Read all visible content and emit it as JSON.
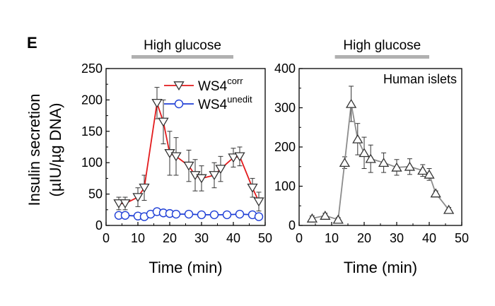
{
  "panel_label": "E",
  "ylabel_line1": "Insulin secretion",
  "ylabel_line2": "(µIU/µg DNA)",
  "colors": {
    "red": "#e31a1c",
    "blue": "#1f3fd6",
    "gray": "#8c8c8c",
    "bar": "#b0b0b0"
  },
  "chart_data": [
    {
      "type": "line",
      "xlabel": "Time (min)",
      "ylabel": "Insulin secretion (µIU/µg DNA)",
      "xlim": [
        0,
        50
      ],
      "ylim": [
        0,
        250
      ],
      "xticks": [
        0,
        10,
        20,
        30,
        40,
        50
      ],
      "yticks": [
        0,
        50,
        100,
        150,
        200,
        250
      ],
      "annotation": {
        "text": "High glucose",
        "range": [
          8,
          40
        ]
      },
      "legend": {
        "placement": "top-left"
      },
      "series": [
        {
          "name_base": "WS4",
          "name_sup": "corr",
          "color": "#e31a1c",
          "marker": "triangle-down",
          "x": [
            4,
            6,
            10,
            12,
            16,
            18,
            20,
            22,
            26,
            28,
            30,
            34,
            36,
            40,
            42,
            46,
            48
          ],
          "y": [
            35,
            35,
            45,
            60,
            195,
            165,
            115,
            110,
            95,
            80,
            75,
            80,
            90,
            108,
            110,
            60,
            38
          ],
          "err": [
            10,
            10,
            15,
            20,
            25,
            35,
            35,
            30,
            25,
            25,
            20,
            20,
            20,
            15,
            15,
            15,
            15
          ]
        },
        {
          "name_base": "WS4",
          "name_sup": "unedit",
          "color": "#1f3fd6",
          "marker": "circle",
          "x": [
            4,
            6,
            10,
            12,
            14,
            16,
            18,
            20,
            22,
            26,
            30,
            34,
            38,
            42,
            46,
            48
          ],
          "y": [
            16,
            16,
            15,
            14,
            18,
            22,
            20,
            19,
            18,
            18,
            17,
            17,
            17,
            18,
            17,
            14
          ],
          "err": [
            4,
            4,
            3,
            3,
            4,
            5,
            4,
            4,
            3,
            3,
            3,
            3,
            3,
            3,
            3,
            3
          ]
        }
      ]
    },
    {
      "type": "line",
      "xlabel": "Time (min)",
      "xlim": [
        0,
        50
      ],
      "ylim": [
        0,
        400
      ],
      "xticks": [
        0,
        10,
        20,
        30,
        40,
        50
      ],
      "yticks": [
        0,
        100,
        200,
        300,
        400
      ],
      "annotation": {
        "text": "High glucose",
        "range": [
          11,
          40
        ]
      },
      "legend": {
        "placement": "top-right",
        "text": "Human islets"
      },
      "series": [
        {
          "name": "Human islets",
          "color": "#8c8c8c",
          "marker": "triangle-up",
          "x": [
            4,
            8,
            12,
            14,
            16,
            18,
            20,
            22,
            26,
            30,
            34,
            38,
            40,
            42,
            46
          ],
          "y": [
            18,
            25,
            15,
            160,
            310,
            220,
            185,
            170,
            160,
            148,
            150,
            140,
            130,
            82,
            40
          ],
          "err": [
            6,
            6,
            5,
            15,
            45,
            40,
            40,
            35,
            25,
            20,
            20,
            15,
            15,
            6,
            6
          ]
        }
      ]
    }
  ]
}
